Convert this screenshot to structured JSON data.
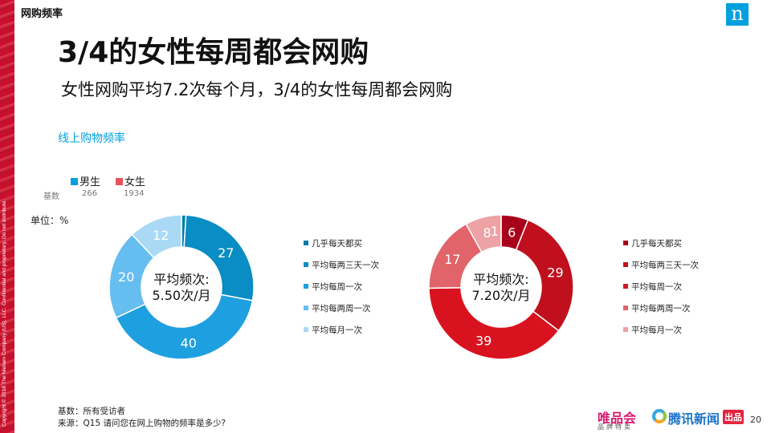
{
  "header": {
    "section_tag": "网购频率",
    "logo_letter": "n",
    "title": "3/4的女性每周都会网购",
    "subtitle": "女性网购平均7.2次每个月，3/4的女性每周都会网购"
  },
  "side_copyright": "Copyright © 2018 The Nielsen Company (US), LLC. Confidential and proprietary. Do not distribute.",
  "chart_heading": "线上购物频率",
  "unit_label": "单位：%",
  "base_label": "基数",
  "groups": [
    {
      "name": "男生",
      "base": "266",
      "color": "#00a0df"
    },
    {
      "name": "女生",
      "base": "1934",
      "color": "#e8505b"
    }
  ],
  "chart_data": [
    {
      "type": "pie",
      "variant": "donut",
      "series_name": "男生",
      "categories": [
        "几乎每天都买",
        "平均每两三天一次",
        "平均每周一次",
        "平均每两周一次",
        "平均每月一次"
      ],
      "values": [
        1,
        27,
        40,
        20,
        12
      ],
      "data_labels": [
        "",
        "27",
        "40",
        "20",
        "12"
      ],
      "colors": [
        "#007ba8",
        "#0a8cc4",
        "#1e9fe0",
        "#66bdf0",
        "#a9d9f5"
      ],
      "center_label": [
        "平均频次:",
        "5.50次/月"
      ]
    },
    {
      "type": "pie",
      "variant": "donut",
      "series_name": "女生",
      "categories": [
        "几乎每天都买",
        "平均每两三天一次",
        "平均每周一次",
        "平均每两周一次",
        "平均每月一次"
      ],
      "values": [
        6,
        29,
        39,
        17,
        8
      ],
      "data_labels": [
        "6",
        "29",
        "39",
        "17",
        "8"
      ],
      "colors": [
        "#a8001a",
        "#c0101e",
        "#d9121f",
        "#e0646a",
        "#eda2a5"
      ],
      "center_label": [
        "平均频次:",
        "7.20次/月"
      ],
      "extra_label": "1"
    }
  ],
  "footnotes": {
    "base": "基数：所有受访者",
    "source": "来源：Q15 请问您在网上购物的频率是多少?"
  },
  "brands": {
    "vip": "唯品会",
    "vip_sub": "品牌特卖",
    "tencent": "腾讯新闻",
    "tencent_tag": "出品"
  },
  "page_number": "20"
}
